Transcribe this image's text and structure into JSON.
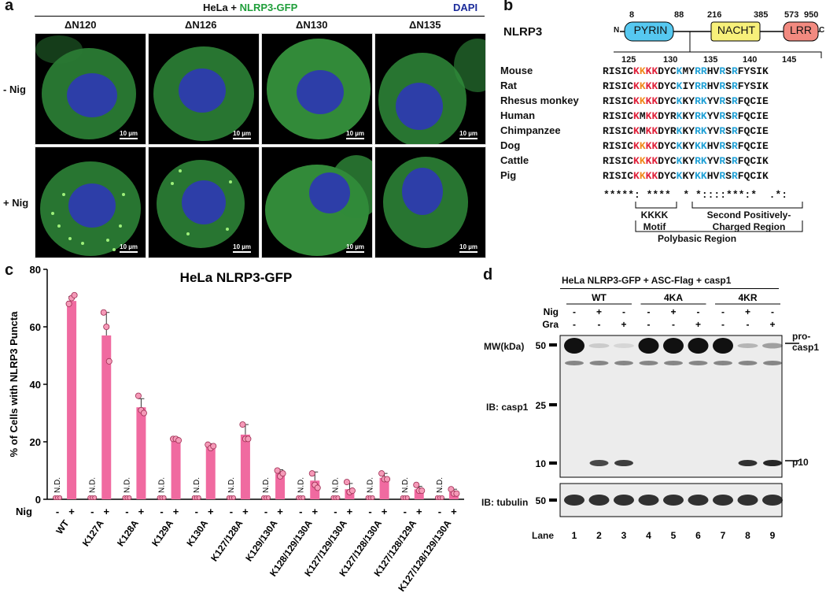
{
  "panel_a": {
    "label": "a",
    "title_prefix": "HeLa + ",
    "title_gfp": "NLRP3-GFP",
    "title_dapi": "DAPI",
    "columns": [
      "ΔN120",
      "ΔN126",
      "ΔN130",
      "ΔN135"
    ],
    "rows": [
      "- Nig",
      "+ Nig"
    ],
    "scale_bar": "10 µm"
  },
  "panel_b": {
    "label": "b",
    "protein": "NLRP3",
    "n_term": "N",
    "c_term": "C",
    "domains": [
      {
        "name": "PYRIN",
        "start": "8",
        "end": "88",
        "color": "#56c8f0"
      },
      {
        "name": "NACHT",
        "start": "216",
        "end": "385",
        "color": "#f7f07a"
      },
      {
        "name": "LRR",
        "start": "573",
        "end": "950",
        "color": "#f28a80"
      }
    ],
    "positions": [
      "125",
      "130",
      "135",
      "140",
      "145"
    ],
    "alignment": [
      {
        "species": "Mouse",
        "seq": [
          [
            "RISIC",
            ""
          ],
          [
            "K",
            "k1"
          ],
          [
            "K",
            "k2"
          ],
          [
            "K",
            "k1"
          ],
          [
            "K",
            "k1"
          ],
          [
            "DYC",
            ""
          ],
          [
            "K",
            "k3"
          ],
          [
            "MY",
            ""
          ],
          [
            "RR",
            "k3"
          ],
          [
            "HV",
            ""
          ],
          [
            "R",
            "k3"
          ],
          [
            "S",
            ""
          ],
          [
            "R",
            "k3"
          ],
          [
            "FYSIK",
            ""
          ]
        ]
      },
      {
        "species": "Rat",
        "seq": [
          [
            "RISIC",
            ""
          ],
          [
            "K",
            "k1"
          ],
          [
            "K",
            "k2"
          ],
          [
            "K",
            "k1"
          ],
          [
            "K",
            "k1"
          ],
          [
            "DYC",
            ""
          ],
          [
            "K",
            "k3"
          ],
          [
            "IY",
            ""
          ],
          [
            "RR",
            "k3"
          ],
          [
            "HV",
            ""
          ],
          [
            "R",
            "k3"
          ],
          [
            "S",
            ""
          ],
          [
            "R",
            "k3"
          ],
          [
            "FYSIK",
            ""
          ]
        ]
      },
      {
        "species": "Rhesus monkey",
        "seq": [
          [
            "RISIC",
            ""
          ],
          [
            "K",
            "k1"
          ],
          [
            "K",
            "k2"
          ],
          [
            "K",
            "k1"
          ],
          [
            "K",
            "k1"
          ],
          [
            "DYC",
            ""
          ],
          [
            "K",
            "k3"
          ],
          [
            "KY",
            ""
          ],
          [
            "RK",
            "k3"
          ],
          [
            "YV",
            ""
          ],
          [
            "R",
            "k3"
          ],
          [
            "S",
            ""
          ],
          [
            "R",
            "k3"
          ],
          [
            "FQCIE",
            ""
          ]
        ]
      },
      {
        "species": "Human",
        "seq": [
          [
            "RISIC",
            ""
          ],
          [
            "K",
            "k1"
          ],
          [
            "M",
            ""
          ],
          [
            "K",
            "k1"
          ],
          [
            "K",
            "k1"
          ],
          [
            "DYR",
            ""
          ],
          [
            "K",
            "k3"
          ],
          [
            "KY",
            ""
          ],
          [
            "RK",
            "k3"
          ],
          [
            "YV",
            ""
          ],
          [
            "R",
            "k3"
          ],
          [
            "S",
            ""
          ],
          [
            "R",
            "k3"
          ],
          [
            "FQCIE",
            ""
          ]
        ]
      },
      {
        "species": "Chimpanzee",
        "seq": [
          [
            "RISIC",
            ""
          ],
          [
            "K",
            "k1"
          ],
          [
            "M",
            ""
          ],
          [
            "K",
            "k1"
          ],
          [
            "K",
            "k1"
          ],
          [
            "DYR",
            ""
          ],
          [
            "K",
            "k3"
          ],
          [
            "KY",
            ""
          ],
          [
            "RK",
            "k3"
          ],
          [
            "YV",
            ""
          ],
          [
            "R",
            "k3"
          ],
          [
            "S",
            ""
          ],
          [
            "R",
            "k3"
          ],
          [
            "FQCIE",
            ""
          ]
        ]
      },
      {
        "species": "Dog",
        "seq": [
          [
            "RISIC",
            ""
          ],
          [
            "K",
            "k1"
          ],
          [
            "K",
            "k2"
          ],
          [
            "K",
            "k1"
          ],
          [
            "K",
            "k1"
          ],
          [
            "DYC",
            ""
          ],
          [
            "K",
            "k3"
          ],
          [
            "KY",
            ""
          ],
          [
            "KK",
            "k3"
          ],
          [
            "HV",
            ""
          ],
          [
            "R",
            "k3"
          ],
          [
            "S",
            ""
          ],
          [
            "R",
            "k3"
          ],
          [
            "FQCIE",
            ""
          ]
        ]
      },
      {
        "species": "Cattle",
        "seq": [
          [
            "RISIC",
            ""
          ],
          [
            "K",
            "k1"
          ],
          [
            "K",
            "k2"
          ],
          [
            "K",
            "k1"
          ],
          [
            "K",
            "k1"
          ],
          [
            "DYC",
            ""
          ],
          [
            "K",
            "k3"
          ],
          [
            "KY",
            ""
          ],
          [
            "RK",
            "k3"
          ],
          [
            "YV",
            ""
          ],
          [
            "R",
            "k3"
          ],
          [
            "S",
            ""
          ],
          [
            "R",
            "k3"
          ],
          [
            "FQCIK",
            ""
          ]
        ]
      },
      {
        "species": "Pig",
        "seq": [
          [
            "RISIC",
            ""
          ],
          [
            "K",
            "k1"
          ],
          [
            "K",
            "k2"
          ],
          [
            "K",
            "k1"
          ],
          [
            "K",
            "k1"
          ],
          [
            "DYC",
            ""
          ],
          [
            "K",
            "k3"
          ],
          [
            "KY",
            ""
          ],
          [
            "KK",
            "k3"
          ],
          [
            "HV",
            ""
          ],
          [
            "R",
            "k3"
          ],
          [
            "S",
            ""
          ],
          [
            "R",
            "k3"
          ],
          [
            "FQCIK",
            ""
          ]
        ]
      }
    ],
    "conservation": "*****: ****  * *::::***:*  .*:",
    "kkkk_motif": "KKKK\nMotif",
    "second_region": "Second Positively-\nCharged Region",
    "polybasic": "Polybasic Region"
  },
  "panel_c": {
    "label": "c",
    "chart_data": {
      "type": "bar",
      "title": "HeLa NLRP3-GFP",
      "ylabel": "% of Cells with NLRP3 Puncta",
      "ylim": [
        0,
        80
      ],
      "yticks": [
        "0",
        "20",
        "40",
        "60",
        "80"
      ],
      "row_label": "Nig",
      "nig_minus": "-",
      "nig_plus": "+",
      "nd_label": "N.D.",
      "categories": [
        "WT",
        "K127A",
        "K128A",
        "K129A",
        "K130A",
        "K127/128A",
        "K129/130A",
        "K128/129/130A",
        "K127/129/130A",
        "K127/128/130A",
        "K127/128/129A",
        "K127/128/129/130A"
      ],
      "values": [
        69,
        57,
        32,
        20.5,
        18.3,
        22.5,
        9,
        6.5,
        3.5,
        7.5,
        3.5,
        2.5
      ],
      "errors": [
        1.5,
        8,
        3,
        0.5,
        1,
        3.5,
        1.3,
        3,
        2,
        1.5,
        1,
        1
      ],
      "points": [
        [
          68,
          70,
          71
        ],
        [
          65,
          60,
          48
        ],
        [
          36,
          31,
          30
        ],
        [
          21,
          21,
          20.5
        ],
        [
          19,
          17.8,
          18.5
        ],
        [
          26,
          21,
          21
        ],
        [
          10,
          8,
          9
        ],
        [
          9,
          5,
          4
        ],
        [
          6,
          2.5,
          3
        ],
        [
          9,
          7,
          7
        ],
        [
          5,
          3,
          3
        ],
        [
          3.5,
          2,
          2
        ]
      ],
      "bar_color": "#f06aa0"
    }
  },
  "panel_d": {
    "label": "d",
    "title": "HeLa NLRP3-GFP + ASC-Flag + casp1",
    "groups": [
      "WT",
      "4KA",
      "4KR"
    ],
    "nig_label": "Nig",
    "gra_label": "Gra",
    "nig": [
      "-",
      "+",
      "-",
      "-",
      "+",
      "-",
      "-",
      "+",
      "-"
    ],
    "gra": [
      "-",
      "-",
      "+",
      "-",
      "-",
      "+",
      "-",
      "-",
      "+"
    ],
    "mw_label": "MW(kDa)",
    "markers": [
      "50",
      "25",
      "10"
    ],
    "tubulin_marker": "50",
    "ib_casp1": "IB: casp1",
    "ib_tubulin": "IB: tubulin",
    "pro_casp1": "pro-\ncasp1",
    "p10": "p10",
    "lane_label": "Lane",
    "lanes": [
      "1",
      "2",
      "3",
      "4",
      "5",
      "6",
      "7",
      "8",
      "9"
    ],
    "procasp1_intensity": [
      1,
      0.15,
      0.1,
      1,
      1,
      1,
      1,
      0.25,
      0.35
    ],
    "p10_intensity": [
      0,
      0.75,
      0.8,
      0,
      0,
      0,
      0,
      0.85,
      0.9
    ]
  }
}
